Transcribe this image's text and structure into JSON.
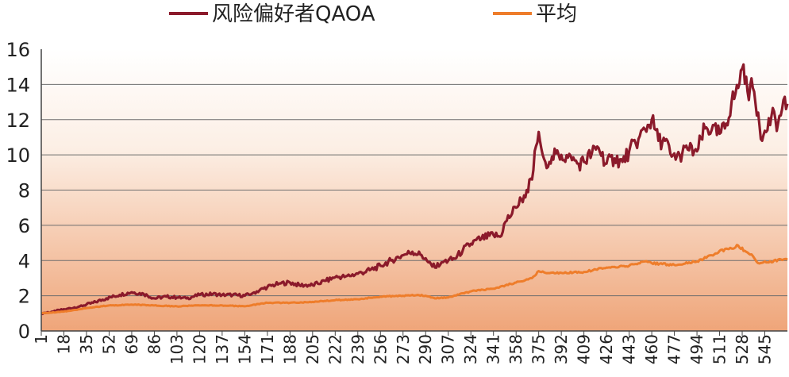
{
  "chart_data": {
    "type": "line",
    "title": "",
    "xlabel": "",
    "ylabel": "",
    "ylim": [
      0,
      16
    ],
    "yticks": [
      0,
      2,
      4,
      6,
      8,
      10,
      12,
      14,
      16
    ],
    "xlim": [
      1,
      562
    ],
    "xticks": [
      1,
      18,
      35,
      52,
      69,
      86,
      103,
      120,
      137,
      154,
      171,
      188,
      205,
      222,
      239,
      256,
      273,
      290,
      307,
      324,
      341,
      358,
      375,
      392,
      409,
      426,
      443,
      460,
      477,
      494,
      511,
      528,
      545
    ],
    "grid": "horizontal",
    "legend_position": "top",
    "background": "gradient: white at top to light orange at bottom",
    "series": [
      {
        "name": "风险偏好者QAOA",
        "color": "#8b1a2b",
        "points": [
          [
            1,
            1.0
          ],
          [
            10,
            1.1
          ],
          [
            20,
            1.25
          ],
          [
            30,
            1.4
          ],
          [
            40,
            1.6
          ],
          [
            50,
            1.85
          ],
          [
            60,
            2.05
          ],
          [
            69,
            2.2
          ],
          [
            78,
            2.1
          ],
          [
            86,
            1.85
          ],
          [
            95,
            1.95
          ],
          [
            103,
            1.9
          ],
          [
            110,
            1.85
          ],
          [
            120,
            2.05
          ],
          [
            130,
            2.1
          ],
          [
            137,
            2.05
          ],
          [
            145,
            2.05
          ],
          [
            154,
            2.0
          ],
          [
            160,
            2.15
          ],
          [
            171,
            2.5
          ],
          [
            180,
            2.7
          ],
          [
            188,
            2.75
          ],
          [
            195,
            2.6
          ],
          [
            205,
            2.6
          ],
          [
            215,
            2.85
          ],
          [
            222,
            3.05
          ],
          [
            230,
            3.1
          ],
          [
            239,
            3.25
          ],
          [
            248,
            3.45
          ],
          [
            256,
            3.7
          ],
          [
            264,
            4.0
          ],
          [
            273,
            4.3
          ],
          [
            280,
            4.5
          ],
          [
            287,
            4.3
          ],
          [
            292,
            3.9
          ],
          [
            297,
            3.6
          ],
          [
            302,
            3.9
          ],
          [
            307,
            4.0
          ],
          [
            312,
            4.1
          ],
          [
            318,
            4.6
          ],
          [
            324,
            4.95
          ],
          [
            332,
            5.25
          ],
          [
            341,
            5.45
          ],
          [
            346,
            5.35
          ],
          [
            350,
            6.2
          ],
          [
            358,
            7.0
          ],
          [
            364,
            7.7
          ],
          [
            370,
            8.6
          ],
          [
            373,
            10.5
          ],
          [
            375,
            11.3
          ],
          [
            378,
            10.0
          ],
          [
            380,
            9.6
          ],
          [
            385,
            9.9
          ],
          [
            392,
            10.0
          ],
          [
            400,
            9.7
          ],
          [
            405,
            9.5
          ],
          [
            409,
            9.6
          ],
          [
            415,
            10.1
          ],
          [
            420,
            10.4
          ],
          [
            426,
            9.5
          ],
          [
            432,
            9.8
          ],
          [
            438,
            9.6
          ],
          [
            443,
            10.2
          ],
          [
            450,
            10.9
          ],
          [
            457,
            11.7
          ],
          [
            460,
            12.0
          ],
          [
            465,
            10.8
          ],
          [
            470,
            10.8
          ],
          [
            475,
            9.9
          ],
          [
            481,
            10.0
          ],
          [
            487,
            10.3
          ],
          [
            494,
            10.2
          ],
          [
            500,
            11.5
          ],
          [
            505,
            11.4
          ],
          [
            511,
            11.2
          ],
          [
            515,
            11.5
          ],
          [
            520,
            13.0
          ],
          [
            525,
            13.8
          ],
          [
            528,
            14.9
          ],
          [
            532,
            13.6
          ],
          [
            536,
            13.8
          ],
          [
            540,
            12.4
          ],
          [
            543,
            10.8
          ],
          [
            546,
            11.3
          ],
          [
            550,
            12.2
          ],
          [
            555,
            11.8
          ],
          [
            558,
            12.6
          ],
          [
            562,
            12.9
          ]
        ]
      },
      {
        "name": "平均",
        "color": "#ee7d2b",
        "points": [
          [
            1,
            1.0
          ],
          [
            18,
            1.1
          ],
          [
            35,
            1.3
          ],
          [
            52,
            1.45
          ],
          [
            69,
            1.5
          ],
          [
            86,
            1.45
          ],
          [
            103,
            1.4
          ],
          [
            120,
            1.45
          ],
          [
            137,
            1.45
          ],
          [
            154,
            1.4
          ],
          [
            171,
            1.6
          ],
          [
            188,
            1.6
          ],
          [
            205,
            1.65
          ],
          [
            222,
            1.75
          ],
          [
            239,
            1.8
          ],
          [
            256,
            1.95
          ],
          [
            273,
            2.0
          ],
          [
            284,
            2.05
          ],
          [
            290,
            2.0
          ],
          [
            297,
            1.85
          ],
          [
            307,
            1.9
          ],
          [
            324,
            2.25
          ],
          [
            341,
            2.4
          ],
          [
            358,
            2.75
          ],
          [
            370,
            3.0
          ],
          [
            375,
            3.4
          ],
          [
            380,
            3.3
          ],
          [
            392,
            3.3
          ],
          [
            409,
            3.35
          ],
          [
            426,
            3.6
          ],
          [
            443,
            3.7
          ],
          [
            455,
            3.95
          ],
          [
            460,
            3.85
          ],
          [
            477,
            3.75
          ],
          [
            494,
            3.95
          ],
          [
            505,
            4.3
          ],
          [
            511,
            4.55
          ],
          [
            518,
            4.65
          ],
          [
            525,
            4.85
          ],
          [
            530,
            4.55
          ],
          [
            535,
            4.35
          ],
          [
            540,
            3.85
          ],
          [
            545,
            3.95
          ],
          [
            550,
            3.9
          ],
          [
            555,
            4.05
          ],
          [
            562,
            4.05
          ]
        ]
      }
    ]
  }
}
